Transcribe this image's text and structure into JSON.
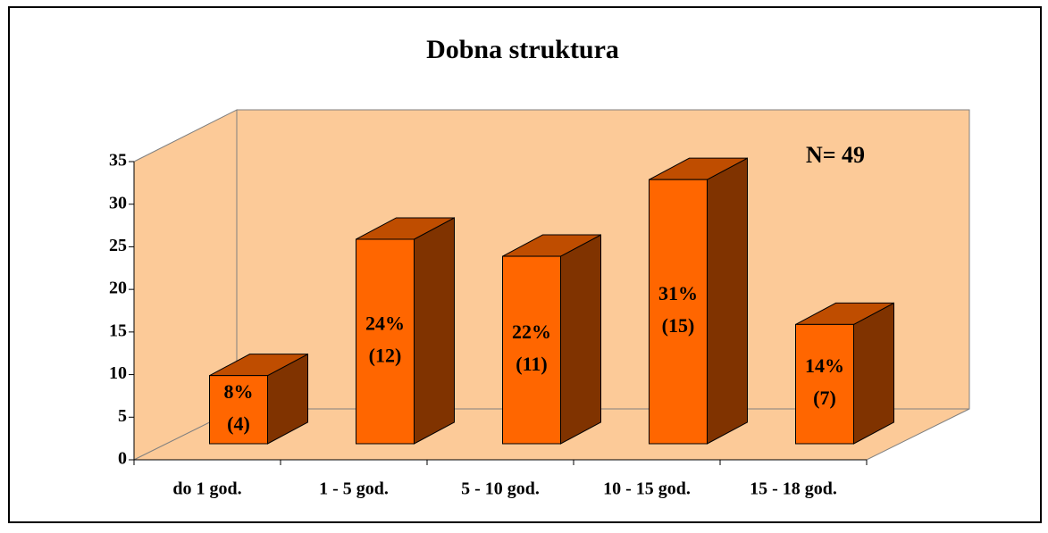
{
  "chart_data": {
    "type": "bar3d",
    "title": "Dobna struktura",
    "annotation": "N= 49",
    "categories": [
      "do 1 god.",
      "1 - 5 god.",
      "5 - 10 god.",
      "10 - 15 god.",
      "15 - 18 god."
    ],
    "values": [
      8,
      24,
      22,
      31,
      14
    ],
    "value_labels": [
      "8%",
      "24%",
      "22%",
      "31%",
      "14%"
    ],
    "count_labels": [
      "(4)",
      "(12)",
      "(11)",
      "(15)",
      "(7)"
    ],
    "color": "#ff6600",
    "ylim": [
      0,
      35
    ],
    "yticks": [
      0,
      5,
      10,
      15,
      20,
      25,
      30,
      35
    ],
    "grid": false
  }
}
